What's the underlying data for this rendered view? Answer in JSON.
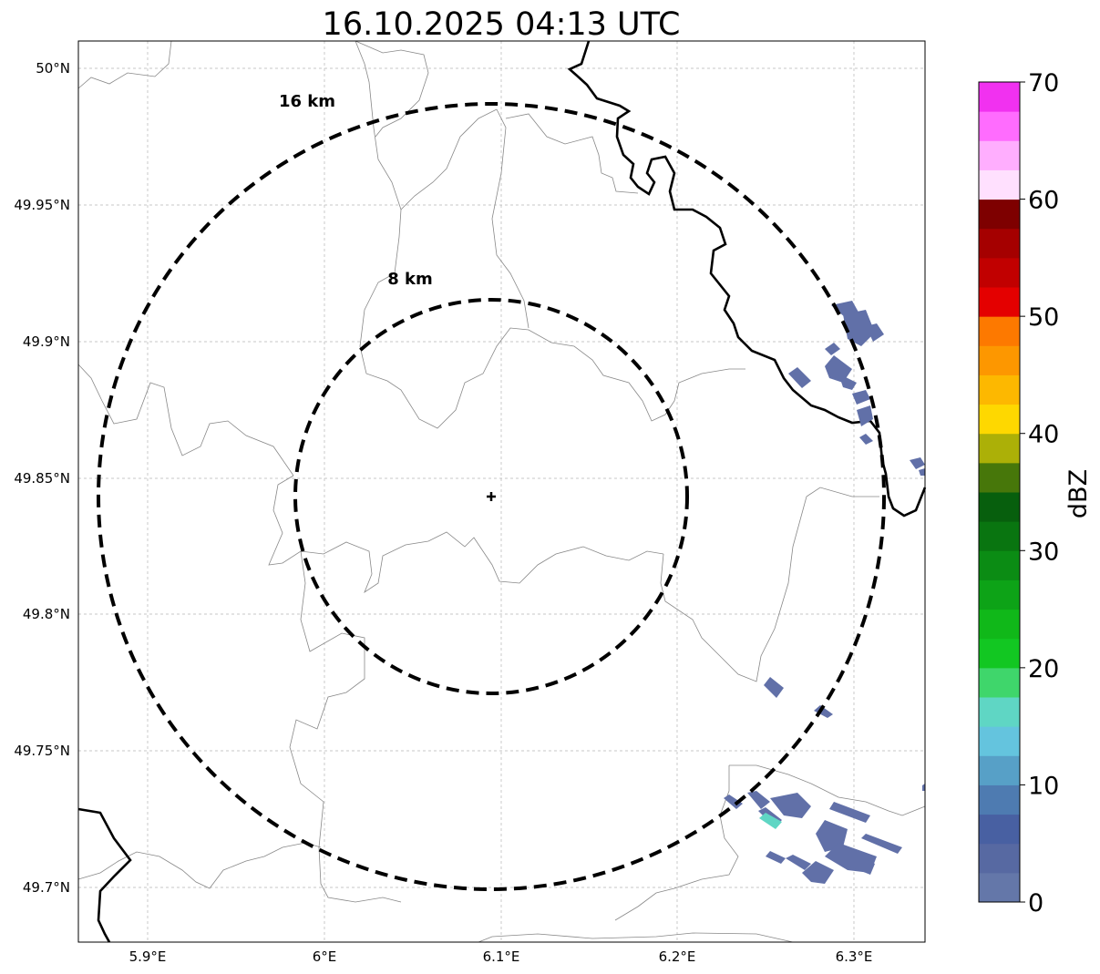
{
  "title": "16.10.2025 04:13 UTC",
  "map": {
    "lon_ticks": [
      "5.9°E",
      "6°E",
      "6.1°E",
      "6.2°E",
      "6.3°E"
    ],
    "lat_ticks": [
      "50°N",
      "49.95°N",
      "49.9°N",
      "49.85°N",
      "49.8°N",
      "49.75°N",
      "49.7°N"
    ],
    "grid": true,
    "radar_site_marker": "plus-icon",
    "range_rings": [
      {
        "label": "8 km",
        "radius_km": 8
      },
      {
        "label": "16 km",
        "radius_km": 16
      }
    ],
    "reflectivity_echo_color": "#6170a8",
    "reflectivity_echo_minor_color": "#5fd6c4"
  },
  "colorbar": {
    "label": "dBZ",
    "tick_labels": [
      "0",
      "10",
      "20",
      "30",
      "40",
      "50",
      "60",
      "70"
    ],
    "min": 0,
    "max": 70,
    "step": 2.5,
    "colors": [
      "#6477a9",
      "#5769a2",
      "#4860a2",
      "#4e7bb1",
      "#57a0c7",
      "#64c4de",
      "#5fd6c4",
      "#3fd66b",
      "#12c722",
      "#10b819",
      "#0da317",
      "#0b8c14",
      "#097510",
      "#075f0d",
      "#47770a",
      "#acb007",
      "#fed800",
      "#fdb800",
      "#fd9700",
      "#fd7900",
      "#e40000",
      "#c10000",
      "#a50000",
      "#7e0000",
      "#ffe0fe",
      "#ffaefe",
      "#ff6cfe",
      "#f131f0"
    ]
  }
}
